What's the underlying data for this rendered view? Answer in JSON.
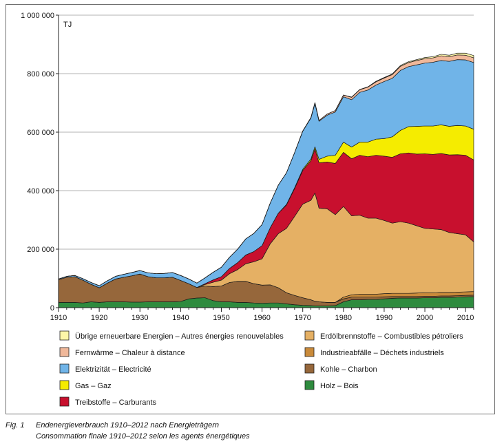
{
  "figure": {
    "label": "Fig. 1",
    "caption_de": "Endenergieverbrauch 1910–2012 nach Energieträgern",
    "caption_fr": "Consommation finale 1910–2012 selon les agents énergétiques"
  },
  "chart_data": {
    "type": "area",
    "stacked": true,
    "unit_label": "TJ",
    "xlim": [
      1910,
      2012
    ],
    "ylim": [
      0,
      1000000
    ],
    "x_ticks": [
      1910,
      1920,
      1930,
      1940,
      1950,
      1960,
      1970,
      1980,
      1990,
      2000,
      2010
    ],
    "y_ticks": [
      0,
      200000,
      400000,
      600000,
      800000,
      1000000
    ],
    "y_tick_labels": [
      "0",
      "200 000",
      "400 000",
      "600 000",
      "800 000",
      "1 000 000"
    ],
    "grid": "horizontal",
    "legend_position": "bottom",
    "years": [
      1910,
      1912,
      1914,
      1916,
      1918,
      1920,
      1922,
      1924,
      1926,
      1928,
      1930,
      1932,
      1934,
      1936,
      1938,
      1940,
      1942,
      1944,
      1946,
      1948,
      1950,
      1952,
      1954,
      1956,
      1958,
      1960,
      1962,
      1964,
      1966,
      1968,
      1970,
      1972,
      1973,
      1974,
      1976,
      1978,
      1980,
      1982,
      1984,
      1986,
      1988,
      1990,
      1992,
      1994,
      1996,
      1998,
      2000,
      2002,
      2004,
      2006,
      2008,
      2010,
      2012
    ],
    "series": [
      {
        "name": "Holz – Bois",
        "color": "#2e8b3e",
        "values": [
          18000,
          18000,
          18000,
          16000,
          20000,
          18000,
          20000,
          20000,
          20000,
          19000,
          19000,
          20000,
          20000,
          20000,
          20000,
          21000,
          30000,
          33000,
          34000,
          24000,
          20000,
          20000,
          18000,
          18000,
          16000,
          15000,
          16000,
          16000,
          13000,
          10000,
          8000,
          7000,
          6000,
          6000,
          6000,
          7000,
          20000,
          27000,
          27000,
          28000,
          28000,
          30000,
          32000,
          33000,
          33000,
          33000,
          34000,
          34000,
          35000,
          35000,
          36000,
          37000,
          38000
        ]
      },
      {
        "name": "Kohle – Charbon",
        "color": "#96673b",
        "values": [
          78000,
          86000,
          88000,
          78000,
          60000,
          50000,
          64000,
          78000,
          84000,
          90000,
          96000,
          86000,
          82000,
          82000,
          84000,
          72000,
          52000,
          36000,
          40000,
          48000,
          54000,
          66000,
          72000,
          72000,
          66000,
          62000,
          62000,
          52000,
          38000,
          32000,
          26000,
          20000,
          16000,
          14000,
          12000,
          11000,
          10000,
          9000,
          9000,
          8000,
          8000,
          7000,
          6000,
          5000,
          5000,
          5000,
          5000,
          5000,
          5000,
          5000,
          5000,
          5000,
          5000
        ]
      },
      {
        "name": "Industrieabfälle – Déchets industriels",
        "color": "#c98a3a",
        "values": [
          0,
          0,
          0,
          0,
          0,
          0,
          0,
          0,
          0,
          0,
          0,
          0,
          0,
          0,
          0,
          0,
          0,
          0,
          0,
          0,
          0,
          0,
          0,
          0,
          0,
          0,
          0,
          0,
          0,
          0,
          0,
          0,
          0,
          0,
          0,
          0,
          6000,
          8000,
          10000,
          10000,
          10000,
          11000,
          11000,
          11000,
          11000,
          12000,
          12000,
          12000,
          12000,
          12000,
          12000,
          12000,
          12000
        ]
      },
      {
        "name": "Erdölbrennstoffe – Combustibles pétroliers",
        "color": "#e5b064",
        "values": [
          0,
          0,
          0,
          0,
          0,
          0,
          0,
          0,
          0,
          0,
          0,
          0,
          0,
          0,
          0,
          0,
          0,
          0,
          5000,
          15000,
          20000,
          30000,
          40000,
          60000,
          75000,
          90000,
          140000,
          185000,
          220000,
          270000,
          320000,
          340000,
          370000,
          320000,
          320000,
          300000,
          310000,
          270000,
          270000,
          260000,
          260000,
          250000,
          240000,
          245000,
          240000,
          230000,
          220000,
          218000,
          215000,
          205000,
          200000,
          195000,
          170000
        ]
      },
      {
        "name": "Treibstoffe – Carburants",
        "color": "#c8102e",
        "values": [
          0,
          0,
          0,
          0,
          0,
          0,
          0,
          0,
          0,
          0,
          0,
          0,
          0,
          0,
          0,
          0,
          0,
          0,
          3000,
          8000,
          12000,
          18000,
          24000,
          30000,
          35000,
          45000,
          55000,
          70000,
          80000,
          95000,
          115000,
          135000,
          150000,
          155000,
          160000,
          175000,
          185000,
          195000,
          205000,
          210000,
          215000,
          220000,
          225000,
          232000,
          240000,
          245000,
          255000,
          255000,
          260000,
          265000,
          270000,
          272000,
          280000
        ]
      },
      {
        "name": "Gas – Gaz",
        "color": "#f5ec00",
        "values": [
          0,
          0,
          0,
          0,
          0,
          0,
          0,
          0,
          0,
          0,
          0,
          0,
          0,
          0,
          0,
          0,
          0,
          0,
          0,
          0,
          0,
          0,
          0,
          0,
          0,
          0,
          0,
          0,
          2000,
          3000,
          4000,
          6000,
          8000,
          12000,
          20000,
          28000,
          35000,
          40000,
          45000,
          50000,
          55000,
          60000,
          70000,
          80000,
          90000,
          95000,
          95000,
          97000,
          98000,
          98000,
          100000,
          100000,
          105000
        ]
      },
      {
        "name": "Elektrizität – Electricité",
        "color": "#70b4e8",
        "values": [
          2000,
          3000,
          4000,
          5000,
          6000,
          7000,
          8000,
          9000,
          10000,
          11000,
          12000,
          13000,
          14000,
          15000,
          16000,
          17000,
          16000,
          15000,
          20000,
          26000,
          32000,
          38000,
          46000,
          55000,
          62000,
          72000,
          84000,
          96000,
          108000,
          120000,
          130000,
          140000,
          148000,
          130000,
          140000,
          148000,
          155000,
          162000,
          170000,
          178000,
          185000,
          195000,
          200000,
          205000,
          205000,
          210000,
          215000,
          218000,
          220000,
          222000,
          225000,
          226000,
          228000
        ]
      },
      {
        "name": "Fernwärme – Chaleur à distance",
        "color": "#f0b89a",
        "values": [
          0,
          0,
          0,
          0,
          0,
          0,
          0,
          0,
          0,
          0,
          0,
          0,
          0,
          0,
          0,
          0,
          0,
          0,
          0,
          0,
          0,
          0,
          0,
          0,
          0,
          0,
          0,
          0,
          0,
          0,
          1000,
          2000,
          3000,
          3000,
          4000,
          5000,
          6000,
          8000,
          9000,
          10000,
          11000,
          12000,
          13000,
          14000,
          14000,
          15000,
          15000,
          15000,
          16000,
          16000,
          16000,
          16000,
          16000
        ]
      },
      {
        "name": "Übrige erneuerbare Energien – Autres énergies renouvelables",
        "color": "#fdf6a8",
        "values": [
          0,
          0,
          0,
          0,
          0,
          0,
          0,
          0,
          0,
          0,
          0,
          0,
          0,
          0,
          0,
          0,
          0,
          0,
          0,
          0,
          0,
          0,
          0,
          0,
          0,
          0,
          0,
          0,
          0,
          0,
          0,
          0,
          0,
          0,
          0,
          0,
          0,
          1000,
          1000,
          1000,
          2000,
          2000,
          2000,
          3000,
          3000,
          3000,
          4000,
          4000,
          5000,
          5000,
          6000,
          7000,
          8000
        ]
      }
    ]
  },
  "legend": {
    "left": [
      {
        "label": "Übrige erneuerbare Energien – Autres énergies renouvelables",
        "color": "#fdf6a8",
        "icon": "legend-swatch"
      },
      {
        "label": "Fernwärme – Chaleur à distance",
        "color": "#f0b89a",
        "icon": "legend-swatch"
      },
      {
        "label": "Elektrizität – Electricité",
        "color": "#70b4e8",
        "icon": "legend-swatch"
      },
      {
        "label": "Gas – Gaz",
        "color": "#f5ec00",
        "icon": "legend-swatch"
      },
      {
        "label": "Treibstoffe – Carburants",
        "color": "#c8102e",
        "icon": "legend-swatch"
      }
    ],
    "right": [
      {
        "label": "Erdölbrennstoffe – Combustibles pétroliers",
        "color": "#e5b064",
        "icon": "legend-swatch"
      },
      {
        "label": "Industrieabfälle – Déchets industriels",
        "color": "#c98a3a",
        "icon": "legend-swatch"
      },
      {
        "label": "Kohle – Charbon",
        "color": "#96673b",
        "icon": "legend-swatch"
      },
      {
        "label": "Holz – Bois",
        "color": "#2e8b3e",
        "icon": "legend-swatch"
      }
    ]
  }
}
